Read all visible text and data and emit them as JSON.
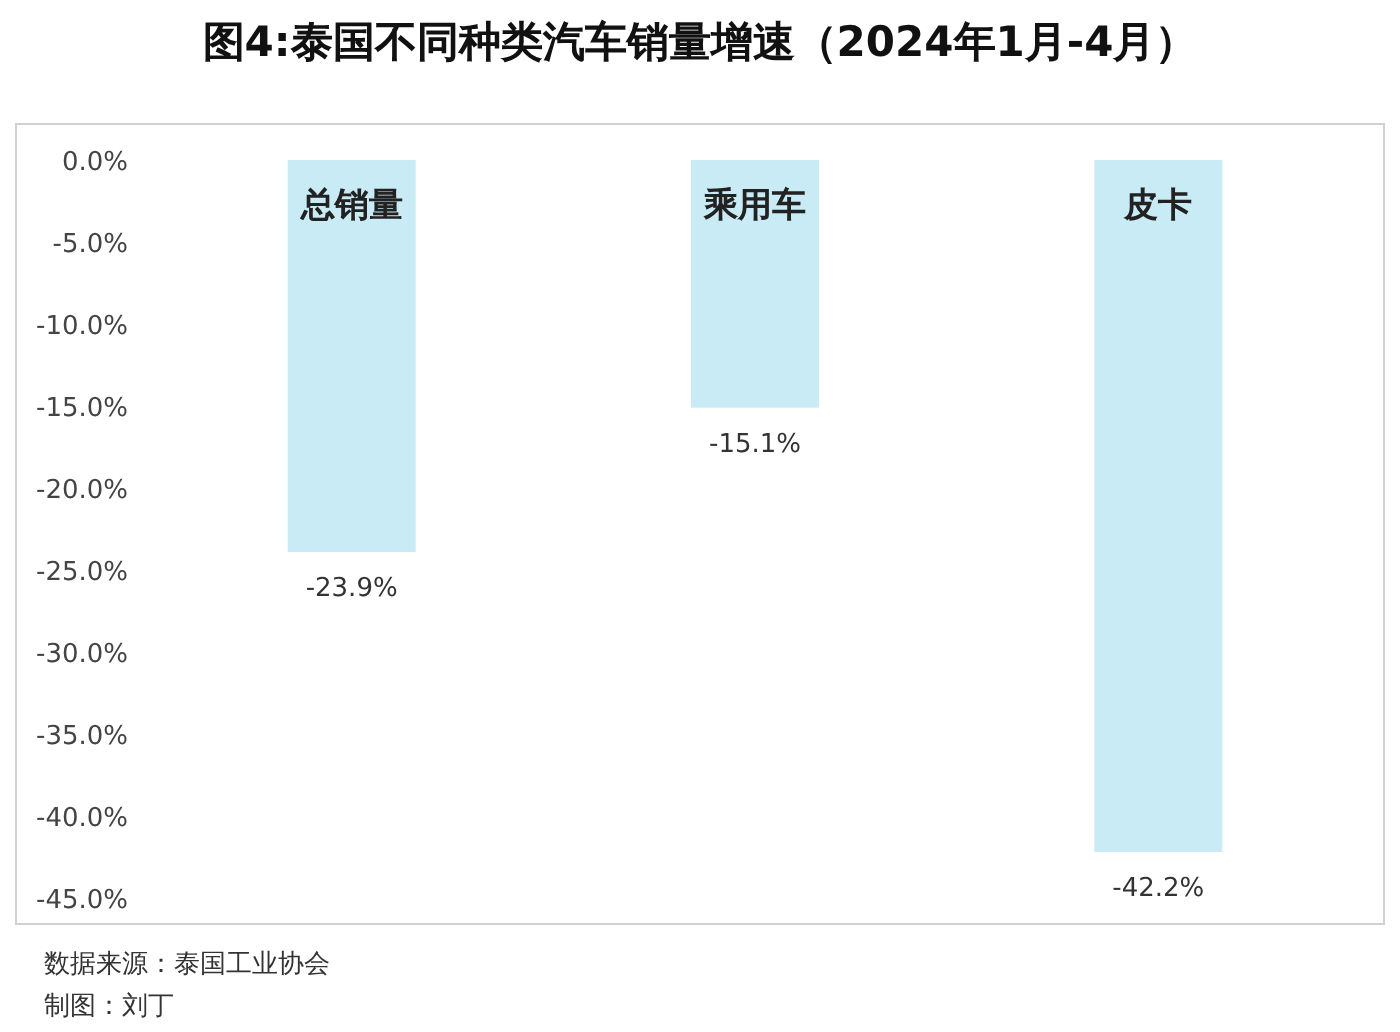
{
  "chart_data": {
    "type": "bar",
    "title": "图4:泰国不同种类汽车销量增速（2024年1月-4月）",
    "categories": [
      "总销量",
      "乘用车",
      "皮卡"
    ],
    "values": [
      -23.9,
      -15.1,
      -42.2
    ],
    "value_labels": [
      "-23.9%",
      "-15.1%",
      "-42.2%"
    ],
    "color": "#c9ebf6",
    "ylim": [
      -45,
      0
    ],
    "yticks": [
      {
        "value": 0,
        "label": "0.0%"
      },
      {
        "value": -5,
        "label": "-5.0%"
      },
      {
        "value": -10,
        "label": "-10.0%"
      },
      {
        "value": -15,
        "label": "-15.0%"
      },
      {
        "value": -20,
        "label": "-20.0%"
      },
      {
        "value": -25,
        "label": "-25.0%"
      },
      {
        "value": -30,
        "label": "-30.0%"
      },
      {
        "value": -35,
        "label": "-35.0%"
      },
      {
        "value": -40,
        "label": "-40.0%"
      },
      {
        "value": -45,
        "label": "-45.0%"
      }
    ],
    "grid": false,
    "annotations": [
      "数据来源：泰国工业协会",
      "制图：刘丁"
    ]
  }
}
